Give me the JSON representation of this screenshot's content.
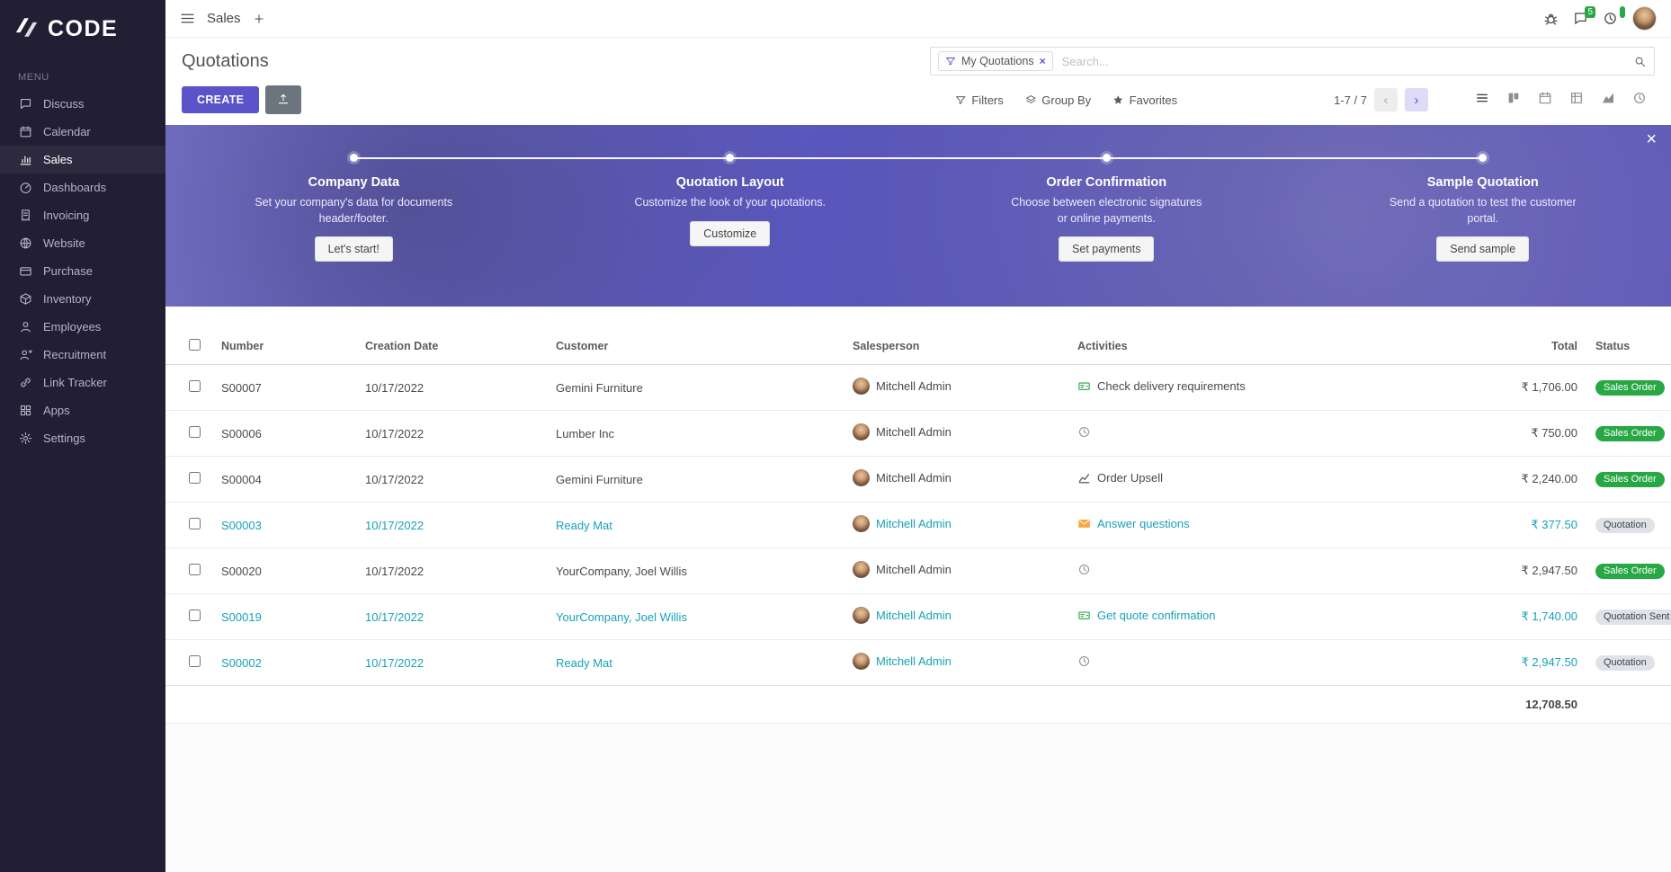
{
  "brand": {
    "name": "CODE"
  },
  "topbar": {
    "app_name": "Sales",
    "messages_badge": "5"
  },
  "sidebar": {
    "menu_label": "MENU",
    "items": [
      {
        "label": "Discuss",
        "icon": "discuss",
        "active": ""
      },
      {
        "label": "Calendar",
        "icon": "calendar",
        "active": ""
      },
      {
        "label": "Sales",
        "icon": "sales",
        "active": "yes"
      },
      {
        "label": "Dashboards",
        "icon": "dashboards",
        "active": ""
      },
      {
        "label": "Invoicing",
        "icon": "invoicing",
        "active": ""
      },
      {
        "label": "Website",
        "icon": "website",
        "active": ""
      },
      {
        "label": "Purchase",
        "icon": "purchase",
        "active": ""
      },
      {
        "label": "Inventory",
        "icon": "inventory",
        "active": ""
      },
      {
        "label": "Employees",
        "icon": "employees",
        "active": ""
      },
      {
        "label": "Recruitment",
        "icon": "recruitment",
        "active": ""
      },
      {
        "label": "Link Tracker",
        "icon": "link",
        "active": ""
      },
      {
        "label": "Apps",
        "icon": "apps",
        "active": ""
      },
      {
        "label": "Settings",
        "icon": "settings",
        "active": ""
      }
    ]
  },
  "control_panel": {
    "title": "Quotations",
    "create_label": "CREATE",
    "filters_label": "Filters",
    "groupby_label": "Group By",
    "favorites_label": "Favorites",
    "pager": "1-7 / 7",
    "search": {
      "filter_tag": "My Quotations",
      "placeholder": "Search..."
    },
    "view_switcher": [
      {
        "icon": "list",
        "active": "yes"
      },
      {
        "icon": "kanban",
        "active": ""
      },
      {
        "icon": "calendar-view",
        "active": ""
      },
      {
        "icon": "pivot",
        "active": ""
      },
      {
        "icon": "graph",
        "active": ""
      },
      {
        "icon": "activity-view",
        "active": ""
      }
    ]
  },
  "banner": {
    "steps": [
      {
        "title": "Company Data",
        "description": "Set your company's data for documents header/footer.",
        "button": "Let's start!"
      },
      {
        "title": "Quotation Layout",
        "description": "Customize the look of your quotations.",
        "button": "Customize"
      },
      {
        "title": "Order Confirmation",
        "description": "Choose between electronic signatures or online payments.",
        "button": "Set payments"
      },
      {
        "title": "Sample Quotation",
        "description": "Send a quotation to test the customer portal.",
        "button": "Send sample"
      }
    ]
  },
  "table": {
    "headers": {
      "number": "Number",
      "creation_date": "Creation Date",
      "customer": "Customer",
      "salesperson": "Salesperson",
      "activities": "Activities",
      "total": "Total",
      "status": "Status"
    },
    "rows": [
      {
        "number": "S00007",
        "creation_date": "10/17/2022",
        "customer": "Gemini Furniture",
        "salesperson": "Mitchell Admin",
        "activity_icon": "money",
        "activity": "Check delivery requirements",
        "total": "₹ 1,706.00",
        "status": "Sales Order",
        "status_type": "success",
        "tone": "default"
      },
      {
        "number": "S00006",
        "creation_date": "10/17/2022",
        "customer": "Lumber Inc",
        "salesperson": "Mitchell Admin",
        "activity_icon": "clock",
        "activity": "",
        "total": "₹ 750.00",
        "status": "Sales Order",
        "status_type": "success",
        "tone": "default"
      },
      {
        "number": "S00004",
        "creation_date": "10/17/2022",
        "customer": "Gemini Furniture",
        "salesperson": "Mitchell Admin",
        "activity_icon": "chart",
        "activity": "Order Upsell",
        "total": "₹ 2,240.00",
        "status": "Sales Order",
        "status_type": "success",
        "tone": "default"
      },
      {
        "number": "S00003",
        "creation_date": "10/17/2022",
        "customer": "Ready Mat",
        "salesperson": "Mitchell Admin",
        "activity_icon": "mail",
        "activity": "Answer questions",
        "total": "₹ 377.50",
        "status": "Quotation",
        "status_type": "muted",
        "tone": "teal"
      },
      {
        "number": "S00020",
        "creation_date": "10/17/2022",
        "customer": "YourCompany, Joel Willis",
        "salesperson": "Mitchell Admin",
        "activity_icon": "clock",
        "activity": "",
        "total": "₹ 2,947.50",
        "status": "Sales Order",
        "status_type": "success",
        "tone": "default"
      },
      {
        "number": "S00019",
        "creation_date": "10/17/2022",
        "customer": "YourCompany, Joel Willis",
        "salesperson": "Mitchell Admin",
        "activity_icon": "money",
        "activity": "Get quote confirmation",
        "total": "₹ 1,740.00",
        "status": "Quotation Sent",
        "status_type": "muted",
        "tone": "teal"
      },
      {
        "number": "S00002",
        "creation_date": "10/17/2022",
        "customer": "Ready Mat",
        "salesperson": "Mitchell Admin",
        "activity_icon": "clock",
        "activity": "",
        "total": "₹ 2,947.50",
        "status": "Quotation",
        "status_type": "muted",
        "tone": "teal"
      }
    ],
    "footer_total": "12,708.50"
  }
}
